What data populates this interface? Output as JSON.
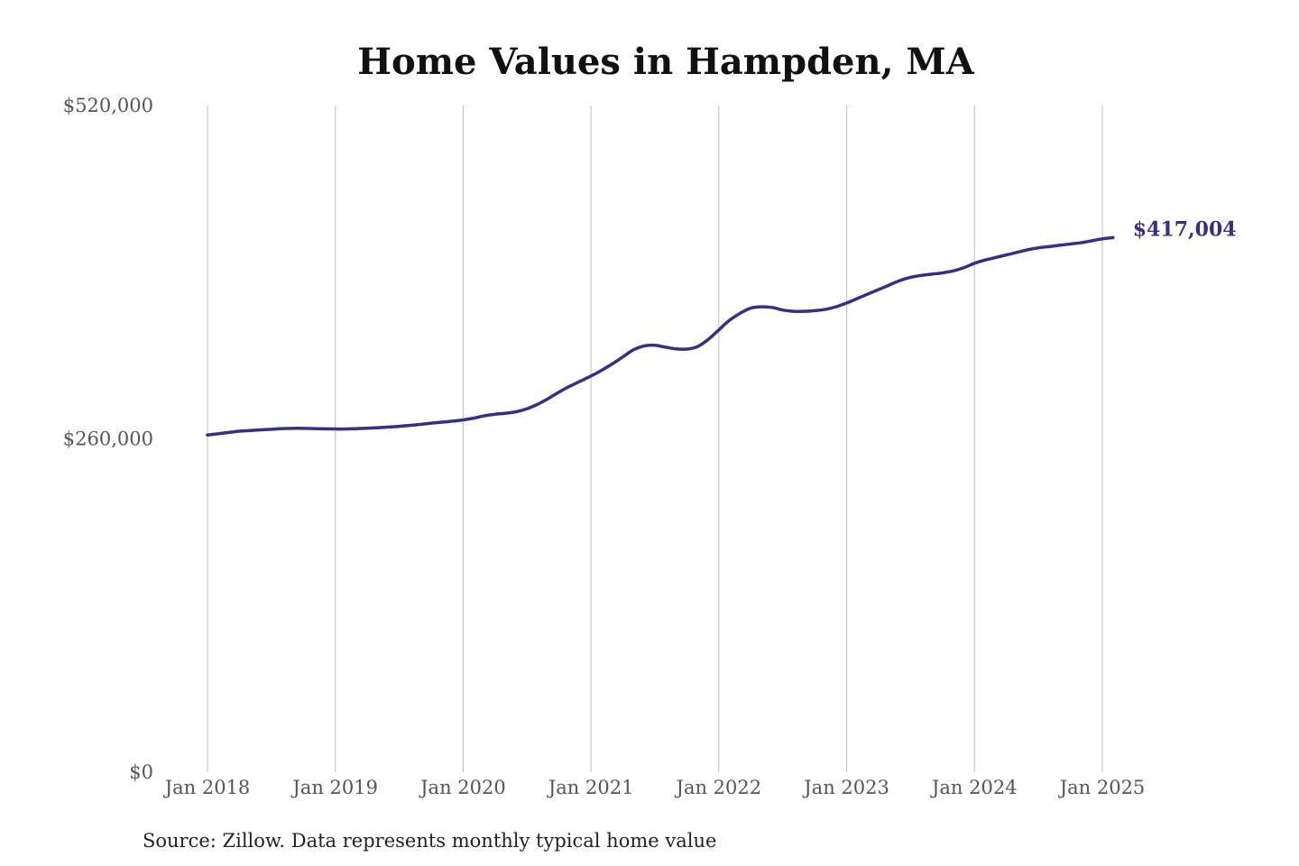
{
  "chart_data": {
    "type": "line",
    "title": "Home Values in Hampden, MA",
    "source": "Source: Zillow. Data represents monthly typical home value",
    "y_ticks": [
      {
        "value": 0,
        "label": "$0"
      },
      {
        "value": 260000,
        "label": "$260,000"
      },
      {
        "value": 520000,
        "label": "$520,000"
      }
    ],
    "x_ticks": [
      {
        "value": "2018-01",
        "label": "Jan 2018"
      },
      {
        "value": "2019-01",
        "label": "Jan 2019"
      },
      {
        "value": "2020-01",
        "label": "Jan 2020"
      },
      {
        "value": "2021-01",
        "label": "Jan 2021"
      },
      {
        "value": "2022-01",
        "label": "Jan 2022"
      },
      {
        "value": "2023-01",
        "label": "Jan 2023"
      },
      {
        "value": "2024-01",
        "label": "Jan 2024"
      },
      {
        "value": "2025-01",
        "label": "Jan 2025"
      }
    ],
    "xlim": [
      "2018-01",
      "2025-02"
    ],
    "ylim": [
      0,
      520000
    ],
    "grid": "vertical",
    "colors": {
      "line": "#352f86"
    },
    "end_label": "$417,004",
    "series": [
      {
        "x": [
          "2018-01",
          "2018-02",
          "2018-03",
          "2018-04",
          "2018-05",
          "2018-06",
          "2018-07",
          "2018-08",
          "2018-09",
          "2018-10",
          "2018-11",
          "2018-12",
          "2019-01",
          "2019-02",
          "2019-03",
          "2019-04",
          "2019-05",
          "2019-06",
          "2019-07",
          "2019-08",
          "2019-09",
          "2019-10",
          "2019-11",
          "2019-12",
          "2020-01",
          "2020-02",
          "2020-03",
          "2020-04",
          "2020-05",
          "2020-06",
          "2020-07",
          "2020-08",
          "2020-09",
          "2020-10",
          "2020-11",
          "2020-12",
          "2021-01",
          "2021-02",
          "2021-03",
          "2021-04",
          "2021-05",
          "2021-06",
          "2021-07",
          "2021-08",
          "2021-09",
          "2021-10",
          "2021-11",
          "2021-12",
          "2022-01",
          "2022-02",
          "2022-03",
          "2022-04",
          "2022-05",
          "2022-06",
          "2022-07",
          "2022-08",
          "2022-09",
          "2022-10",
          "2022-11",
          "2022-12",
          "2023-01",
          "2023-02",
          "2023-03",
          "2023-04",
          "2023-05",
          "2023-06",
          "2023-07",
          "2023-08",
          "2023-09",
          "2023-10",
          "2023-11",
          "2023-12",
          "2024-01",
          "2024-02",
          "2024-03",
          "2024-04",
          "2024-05",
          "2024-06",
          "2024-07",
          "2024-08",
          "2024-09",
          "2024-10",
          "2024-11",
          "2024-12",
          "2025-01",
          "2025-02"
        ],
        "y": [
          263000,
          264000,
          265000,
          266000,
          266500,
          267000,
          267500,
          268000,
          268200,
          268200,
          268000,
          267800,
          267700,
          267700,
          268000,
          268300,
          268700,
          269200,
          269800,
          270500,
          271300,
          272200,
          273000,
          273800,
          274800,
          276200,
          278000,
          279200,
          280000,
          281200,
          283500,
          287000,
          291500,
          296500,
          301000,
          305000,
          309000,
          313500,
          318500,
          324000,
          329500,
          332500,
          333000,
          331500,
          330200,
          330000,
          332000,
          337500,
          345000,
          352500,
          358000,
          362000,
          363000,
          362500,
          360500,
          359500,
          359500,
          360000,
          361000,
          363000,
          366000,
          369500,
          373000,
          376500,
          380000,
          383500,
          386000,
          387500,
          388500,
          389500,
          391000,
          393500,
          397000,
          399500,
          401500,
          403500,
          405500,
          407500,
          409000,
          410000,
          411000,
          412000,
          413000,
          414500,
          416000,
          417004
        ]
      }
    ]
  }
}
